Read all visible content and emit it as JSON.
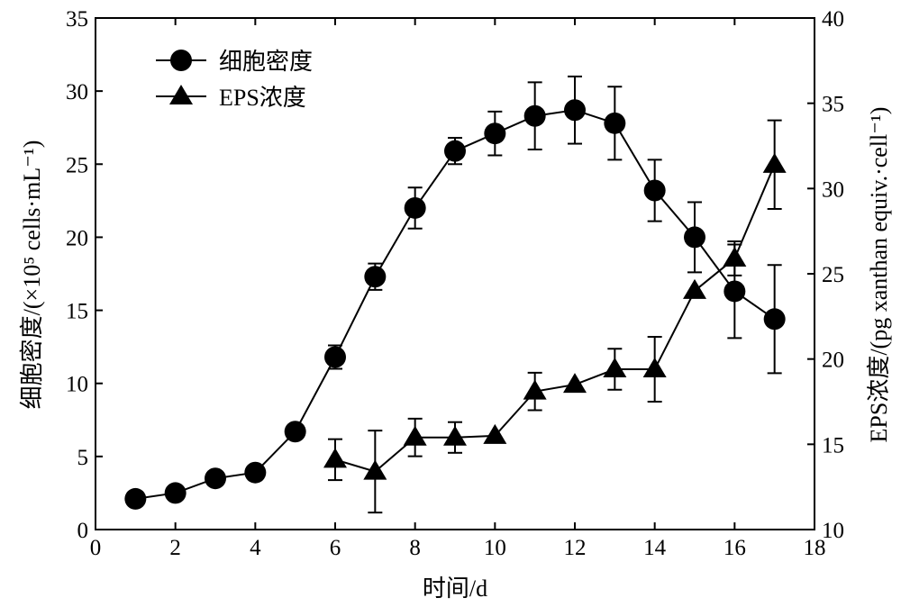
{
  "chart_data": {
    "type": "line",
    "xlabel": "时间/d",
    "ylabel_left": "细胞密度/(×10⁵ cells·mL⁻¹)",
    "ylabel_right": "EPS浓度/(pg xanthan equiv.·cell⁻¹)",
    "xlim": [
      0,
      18
    ],
    "ylim_left": [
      0,
      35
    ],
    "ylim_right": [
      10,
      40
    ],
    "x_ticks": [
      "0",
      "2",
      "4",
      "6",
      "8",
      "10",
      "12",
      "14",
      "16",
      "18"
    ],
    "y_left_ticks": [
      "0",
      "5",
      "10",
      "15",
      "20",
      "25",
      "30",
      "35"
    ],
    "y_right_ticks": [
      "10",
      "15",
      "20",
      "25",
      "30",
      "35",
      "40"
    ],
    "grid": false,
    "legend_position": "top-left",
    "series": [
      {
        "name": "细胞密度",
        "axis": "left",
        "marker": "circle",
        "x": [
          1,
          2,
          3,
          4,
          5,
          6,
          7,
          8,
          9,
          10,
          11,
          12,
          13,
          14,
          15,
          16,
          17
        ],
        "y": [
          2.1,
          2.5,
          3.5,
          3.9,
          6.7,
          11.8,
          17.3,
          22.0,
          25.9,
          27.1,
          28.3,
          28.7,
          27.8,
          23.2,
          20.0,
          16.3,
          14.4
        ],
        "error": [
          0,
          0,
          0,
          0,
          0,
          0.8,
          0.9,
          1.4,
          0.9,
          1.5,
          2.3,
          2.3,
          2.5,
          2.1,
          2.4,
          3.2,
          3.7
        ]
      },
      {
        "name": "EPS浓度",
        "axis": "right",
        "marker": "triangle",
        "x": [
          6,
          7,
          8,
          9,
          10,
          11,
          12,
          13,
          14,
          15,
          16,
          17
        ],
        "y": [
          14.1,
          13.4,
          15.4,
          15.4,
          15.5,
          18.1,
          18.5,
          19.4,
          19.4,
          24.0,
          25.9,
          31.4
        ],
        "error": [
          1.2,
          2.4,
          1.1,
          0.9,
          0,
          1.1,
          0,
          1.2,
          1.9,
          0,
          1.0,
          2.6
        ]
      }
    ]
  }
}
